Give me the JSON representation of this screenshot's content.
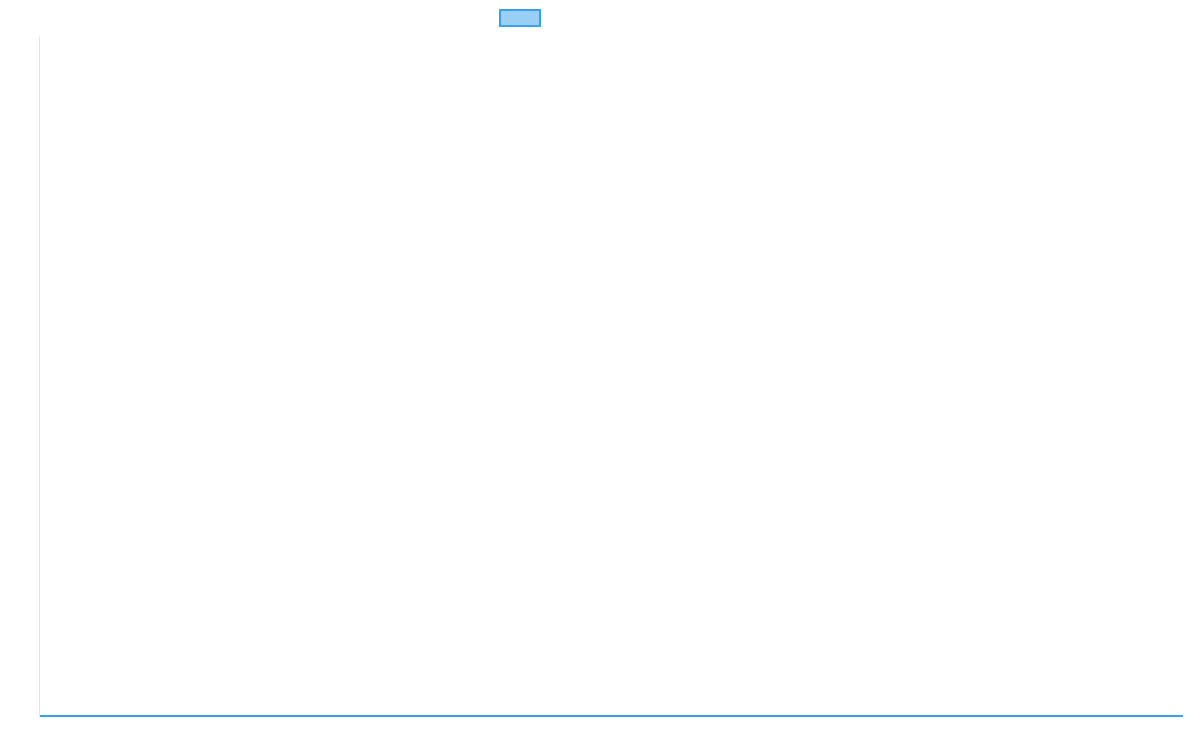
{
  "chart_data": {
    "type": "line",
    "title": "",
    "xlabel": "",
    "ylabel": "",
    "categories": [
      "",
      ""
    ],
    "series": [
      {
        "values": [
          0,
          0
        ],
        "color": "#36a2eb",
        "fill": "#9ad0f5"
      }
    ],
    "ylim": [
      0,
      1
    ],
    "grid": false,
    "legend": "top"
  }
}
